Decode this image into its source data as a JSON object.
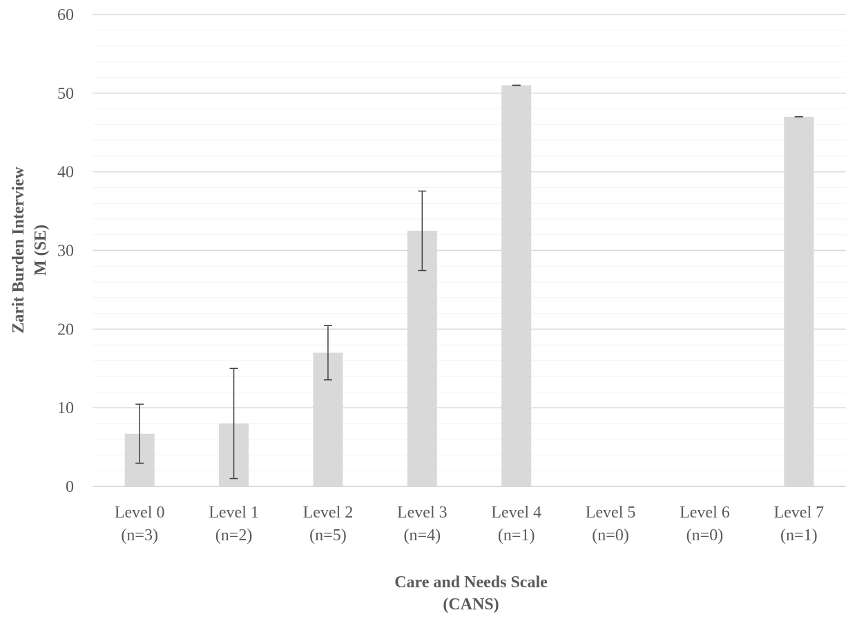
{
  "chart_data": {
    "type": "bar",
    "categories": [
      "Level 0",
      "Level 1",
      "Level 2",
      "Level 3",
      "Level 4",
      "Level 5",
      "Level 6",
      "Level 7"
    ],
    "category_sublabels": [
      "(n=3)",
      "(n=2)",
      "(n=5)",
      "(n=4)",
      "(n=1)",
      "(n=0)",
      "(n=0)",
      "(n=1)"
    ],
    "values": [
      6.7,
      8.0,
      17.0,
      32.5,
      51.0,
      0,
      0,
      47.0
    ],
    "error_se": [
      3.75,
      7.0,
      3.45,
      5.05,
      0,
      0,
      0,
      0
    ],
    "title": "",
    "ylabel_lines": [
      "Zarit Burden Interview",
      "M (SE)"
    ],
    "xlabel_lines": [
      "Care and Needs Scale",
      "(CANS)"
    ],
    "ylim": [
      0,
      60
    ],
    "yticks": [
      0,
      10,
      20,
      30,
      40,
      50,
      60
    ],
    "minor_grid_step": 2,
    "grid": true,
    "legend": "none",
    "colors": {
      "bar": "#d9d9d9",
      "error_bar": "#404040",
      "major_grid": "#d9d9d9",
      "minor_grid": "#f2f2f2",
      "axis_line": "#d9d9d9",
      "text": "#595959"
    }
  }
}
